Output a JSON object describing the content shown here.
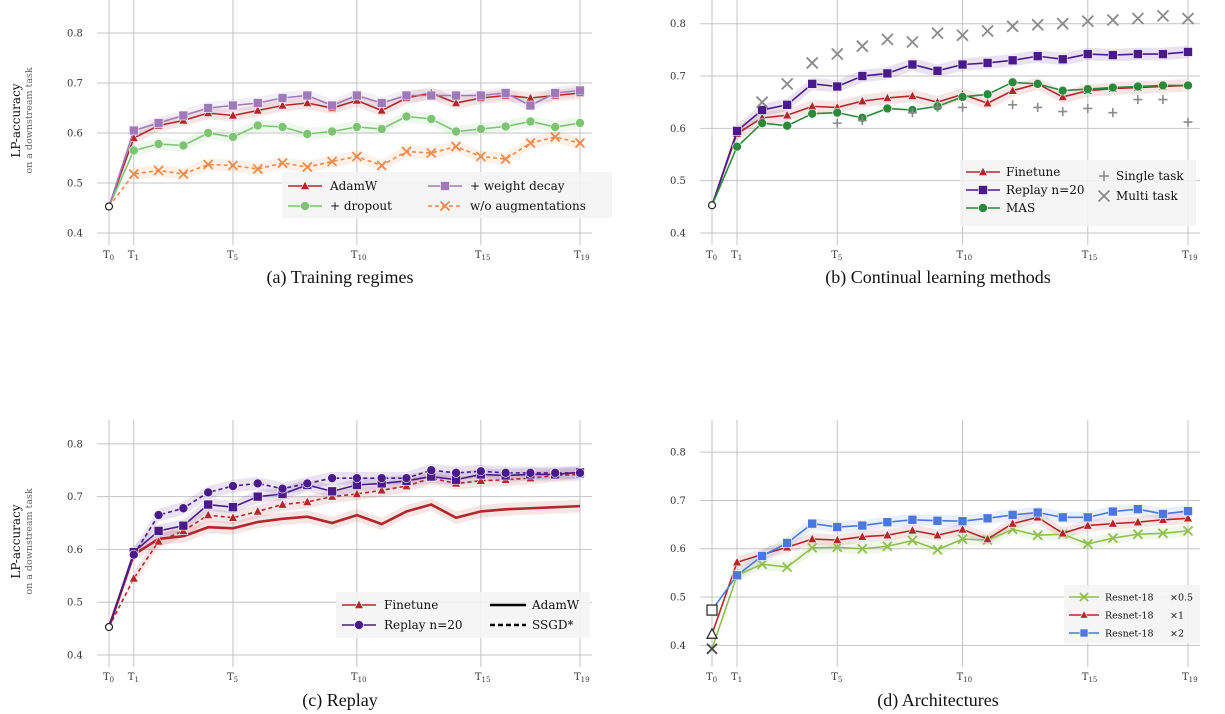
{
  "chart_data": [
    {
      "id": "a",
      "type": "line",
      "caption": "(a) Training regimes",
      "ylabel": "LP-accuracy",
      "ylabel_sub": "on a downstream task",
      "ylim": [
        0.4,
        0.85
      ],
      "yticks": [
        0.4,
        0.5,
        0.6,
        0.7,
        0.8
      ],
      "ytick_labels": [
        "0.4",
        "0.5",
        "0.6",
        "0.7",
        "0.8"
      ],
      "xlim": [
        0,
        19
      ],
      "xticks": [
        0,
        1,
        5,
        10,
        15,
        19
      ],
      "xtick_labels": [
        [
          "T",
          "0"
        ],
        [
          "T",
          "1"
        ],
        [
          "T",
          "5"
        ],
        [
          "T",
          "10"
        ],
        [
          "T",
          "15"
        ],
        [
          "T",
          "19"
        ]
      ],
      "grid": true,
      "legend_position": "bottom-right",
      "start_value": 0.453,
      "series": [
        {
          "name": "AdamW",
          "color": "#b5262b",
          "marker": "triangle",
          "dash": "solid",
          "band": true,
          "values": [
            0.453,
            0.59,
            0.615,
            0.625,
            0.64,
            0.635,
            0.645,
            0.655,
            0.66,
            0.65,
            0.665,
            0.645,
            0.67,
            0.68,
            0.66,
            0.67,
            0.675,
            0.67,
            0.675,
            0.68
          ]
        },
        {
          "name": "+ dropout",
          "color": "#7cc472",
          "marker": "circle",
          "dash": "solid",
          "band": true,
          "values": [
            0.453,
            0.565,
            0.578,
            0.575,
            0.6,
            0.592,
            0.615,
            0.612,
            0.598,
            0.603,
            0.612,
            0.608,
            0.633,
            0.628,
            0.603,
            0.608,
            0.613,
            0.623,
            0.612,
            0.62
          ]
        },
        {
          "name": "+ weight decay",
          "color": "#a07ab8",
          "marker": "square",
          "dash": "solid",
          "band": true,
          "values": [
            0.453,
            0.605,
            0.62,
            0.635,
            0.65,
            0.655,
            0.66,
            0.67,
            0.675,
            0.655,
            0.675,
            0.66,
            0.675,
            0.675,
            0.675,
            0.675,
            0.68,
            0.655,
            0.68,
            0.685
          ]
        },
        {
          "name": "w/o augmentations",
          "color": "#f08a4b",
          "marker": "x",
          "dash": "dashed",
          "band": true,
          "values": [
            0.453,
            0.518,
            0.525,
            0.518,
            0.537,
            0.535,
            0.528,
            0.54,
            0.532,
            0.543,
            0.553,
            0.535,
            0.563,
            0.56,
            0.573,
            0.553,
            0.548,
            0.58,
            0.592,
            0.58
          ]
        }
      ],
      "legend_columns": [
        [
          "AdamW",
          "+ dropout"
        ],
        [
          "+ weight decay",
          "w/o augmentations"
        ]
      ]
    },
    {
      "id": "b",
      "type": "line",
      "caption": "(b) Continual learning methods",
      "ylabel": "",
      "ylabel_sub": "",
      "ylim": [
        0.4,
        0.83
      ],
      "yticks": [
        0.4,
        0.5,
        0.6,
        0.7,
        0.8
      ],
      "ytick_labels": [
        "0.4",
        "0.5",
        "0.6",
        "0.7",
        "0.8"
      ],
      "xlim": [
        0,
        19
      ],
      "xticks": [
        0,
        1,
        5,
        10,
        15,
        19
      ],
      "xtick_labels": [
        [
          "T",
          "0"
        ],
        [
          "T",
          "1"
        ],
        [
          "T",
          "5"
        ],
        [
          "T",
          "10"
        ],
        [
          "T",
          "15"
        ],
        [
          "T",
          "19"
        ]
      ],
      "grid": true,
      "legend_position": "bottom-right",
      "start_value": 0.453,
      "series": [
        {
          "name": "Finetune",
          "color": "#b5262b",
          "marker": "triangle",
          "dash": "solid",
          "band": true,
          "values": [
            0.453,
            0.59,
            0.62,
            0.625,
            0.642,
            0.64,
            0.652,
            0.658,
            0.662,
            0.65,
            0.665,
            0.648,
            0.672,
            0.685,
            0.66,
            0.672,
            0.676,
            0.678,
            0.68,
            0.682
          ]
        },
        {
          "name": "Replay n=20",
          "color": "#4a1a8a",
          "marker": "square",
          "dash": "solid",
          "band": true,
          "values": [
            0.453,
            0.595,
            0.635,
            0.645,
            0.685,
            0.68,
            0.7,
            0.705,
            0.722,
            0.71,
            0.722,
            0.725,
            0.73,
            0.738,
            0.732,
            0.742,
            0.74,
            0.742,
            0.742,
            0.746
          ]
        },
        {
          "name": "MAS",
          "color": "#2a8a3a",
          "marker": "circle",
          "dash": "solid",
          "band": false,
          "values": [
            0.453,
            0.565,
            0.61,
            0.605,
            0.628,
            0.63,
            0.62,
            0.638,
            0.635,
            0.642,
            0.66,
            0.665,
            0.688,
            0.685,
            0.672,
            0.675,
            0.678,
            0.68,
            0.682,
            0.682
          ]
        },
        {
          "name": "Single task",
          "color": "#8a8a8a",
          "marker": "plus",
          "dash": "none",
          "band": false,
          "values": [
            null,
            null,
            null,
            null,
            null,
            0.61,
            0.615,
            null,
            0.63,
            0.64,
            0.64,
            null,
            0.645,
            0.64,
            0.632,
            0.638,
            0.63,
            0.655,
            0.655,
            0.612
          ]
        },
        {
          "name": "Multi task",
          "color": "#8a8a8a",
          "marker": "x",
          "dash": "none",
          "band": false,
          "values": [
            null,
            null,
            0.65,
            0.685,
            0.725,
            0.742,
            0.757,
            0.77,
            0.765,
            0.782,
            0.778,
            0.786,
            0.795,
            0.798,
            0.8,
            0.805,
            0.807,
            0.81,
            0.815,
            0.81
          ]
        }
      ],
      "legend_columns": [
        [
          "Finetune",
          "Replay n=20",
          "MAS"
        ],
        [
          "Single task",
          "Multi task"
        ]
      ]
    },
    {
      "id": "c",
      "type": "line",
      "caption": "(c) Replay",
      "ylabel": "LP-accuracy",
      "ylabel_sub": "on a downstream task",
      "ylim": [
        0.4,
        0.83
      ],
      "yticks": [
        0.4,
        0.5,
        0.6,
        0.7,
        0.8
      ],
      "ytick_labels": [
        "0.4",
        "0.5",
        "0.6",
        "0.7",
        "0.8"
      ],
      "xlim": [
        0,
        19
      ],
      "xticks": [
        0,
        1,
        5,
        10,
        15,
        19
      ],
      "xtick_labels": [
        [
          "T",
          "0"
        ],
        [
          "T",
          "1"
        ],
        [
          "T",
          "5"
        ],
        [
          "T",
          "10"
        ],
        [
          "T",
          "15"
        ],
        [
          "T",
          "19"
        ]
      ],
      "grid": true,
      "legend_position": "bottom-right",
      "start_value": 0.453,
      "series": [
        {
          "name": "Finetune AdamW",
          "color": "#b5262b",
          "marker": "none",
          "dash": "solid",
          "band": true,
          "values": [
            0.453,
            0.59,
            0.62,
            0.625,
            0.642,
            0.64,
            0.652,
            0.658,
            0.662,
            0.65,
            0.665,
            0.648,
            0.672,
            0.685,
            0.66,
            0.672,
            0.676,
            0.678,
            0.68,
            0.682
          ]
        },
        {
          "name": "Finetune SSGD*",
          "color": "#b5262b",
          "marker": "triangle",
          "dash": "dashed",
          "band": true,
          "values": [
            0.453,
            0.545,
            0.615,
            0.635,
            0.665,
            0.66,
            0.672,
            0.685,
            0.69,
            0.7,
            0.705,
            0.712,
            0.72,
            0.735,
            0.725,
            0.73,
            0.732,
            0.735,
            0.74,
            0.742
          ]
        },
        {
          "name": "Replay n=20 AdamW",
          "color": "#4a1a8a",
          "marker": "square",
          "dash": "solid",
          "band": true,
          "values": [
            0.453,
            0.595,
            0.635,
            0.645,
            0.685,
            0.68,
            0.7,
            0.705,
            0.722,
            0.71,
            0.722,
            0.725,
            0.73,
            0.738,
            0.732,
            0.742,
            0.74,
            0.742,
            0.742,
            0.746
          ]
        },
        {
          "name": "Replay n=20 SSGD*",
          "color": "#4a1a8a",
          "marker": "circle",
          "dash": "dashed",
          "band": true,
          "values": [
            0.453,
            0.59,
            0.665,
            0.678,
            0.708,
            0.72,
            0.725,
            0.715,
            0.725,
            0.735,
            0.735,
            0.735,
            0.735,
            0.75,
            0.745,
            0.748,
            0.745,
            0.745,
            0.745,
            0.745
          ]
        }
      ],
      "legend_rows": [
        {
          "label": "Finetune",
          "color": "#b5262b",
          "marker": "triangle"
        },
        {
          "label": "Replay n=20",
          "color": "#4a1a8a",
          "marker": "circle"
        }
      ],
      "legend_styles": [
        {
          "label": "AdamW",
          "dash": "solid"
        },
        {
          "label": "SSGD*",
          "dash": "dashed"
        }
      ]
    },
    {
      "id": "d",
      "type": "line",
      "caption": "(d) Architectures",
      "ylabel": "",
      "ylabel_sub": "",
      "ylim": [
        0.38,
        0.85
      ],
      "yticks": [
        0.4,
        0.5,
        0.6,
        0.7,
        0.8
      ],
      "ytick_labels": [
        "0.4",
        "0.5",
        "0.6",
        "0.7",
        "0.8"
      ],
      "xlim": [
        0,
        19
      ],
      "xticks": [
        0,
        1,
        5,
        10,
        15,
        19
      ],
      "xtick_labels": [
        [
          "T",
          "0"
        ],
        [
          "T",
          "1"
        ],
        [
          "T",
          "5"
        ],
        [
          "T",
          "10"
        ],
        [
          "T",
          "15"
        ],
        [
          "T",
          "19"
        ]
      ],
      "grid": true,
      "legend_position": "bottom-right",
      "series": [
        {
          "name": "Resnet-18",
          "multiplier": "×0.5",
          "color": "#8fbf4d",
          "marker": "x",
          "dash": "solid",
          "band": true,
          "start_marker": "x",
          "values": [
            0.393,
            0.545,
            0.568,
            0.562,
            0.602,
            0.603,
            0.6,
            0.605,
            0.617,
            0.598,
            0.62,
            0.618,
            0.64,
            0.628,
            0.63,
            0.61,
            0.622,
            0.63,
            0.632,
            0.637
          ]
        },
        {
          "name": "Resnet-18",
          "multiplier": "×1",
          "color": "#b5262b",
          "marker": "triangle",
          "dash": "solid",
          "band": true,
          "start_marker": "triangle",
          "values": [
            0.423,
            0.572,
            0.588,
            0.603,
            0.62,
            0.618,
            0.625,
            0.628,
            0.638,
            0.628,
            0.64,
            0.62,
            0.652,
            0.665,
            0.632,
            0.648,
            0.652,
            0.655,
            0.66,
            0.663
          ]
        },
        {
          "name": "Resnet-18",
          "multiplier": "×2",
          "color": "#4a78e0",
          "marker": "square",
          "dash": "solid",
          "band": true,
          "start_marker": "square",
          "values": [
            0.473,
            0.545,
            0.585,
            0.612,
            0.652,
            0.645,
            0.648,
            0.655,
            0.66,
            0.658,
            0.657,
            0.663,
            0.67,
            0.675,
            0.665,
            0.665,
            0.677,
            0.682,
            0.672,
            0.678
          ]
        }
      ]
    }
  ]
}
